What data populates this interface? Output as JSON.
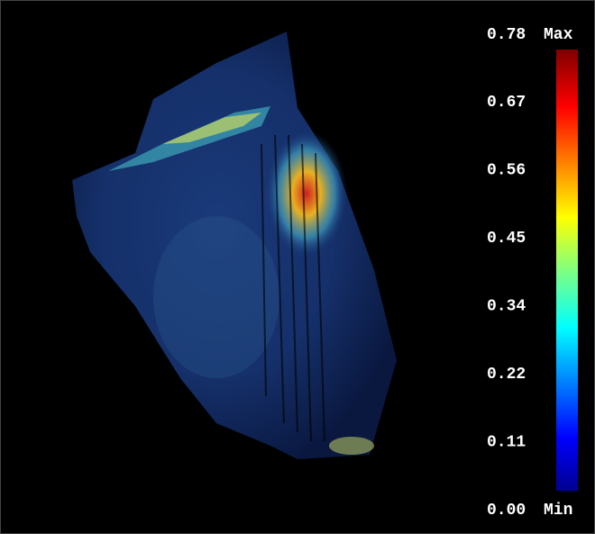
{
  "colorbar": {
    "ticks": [
      "0.78",
      "0.67",
      "0.56",
      "0.45",
      "0.34",
      "0.22",
      "0.11",
      "0.00"
    ],
    "max_label": "Max",
    "min_label": "Min"
  }
}
